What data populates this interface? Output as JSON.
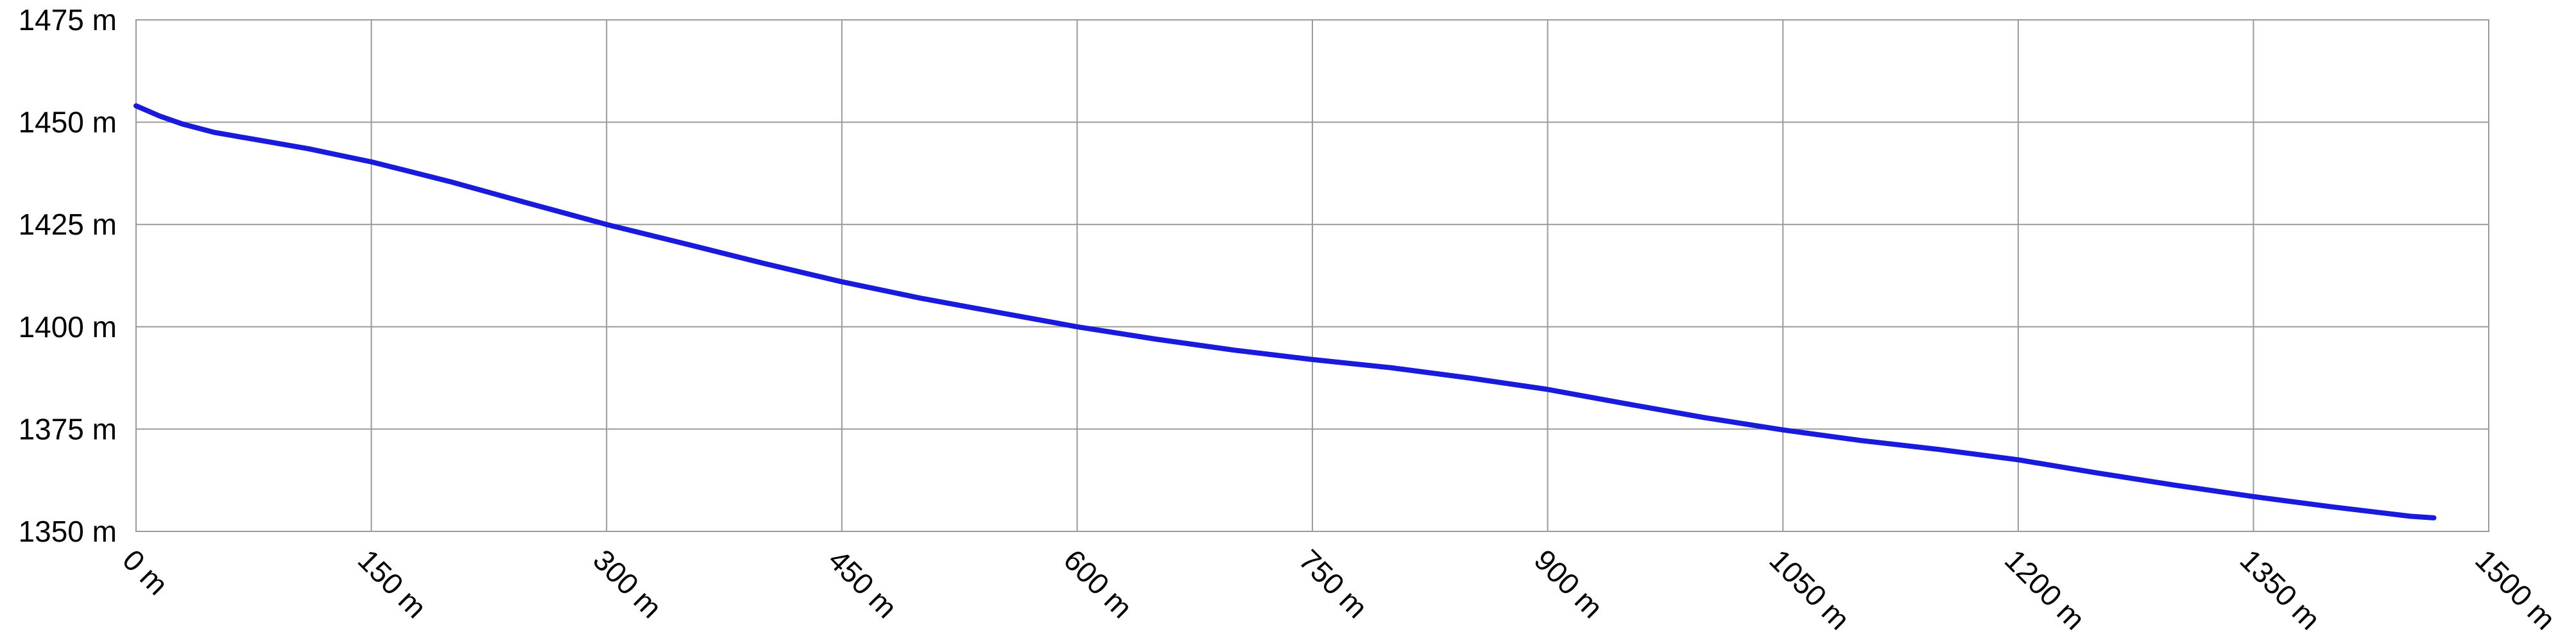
{
  "chart_data": {
    "type": "line",
    "title": "",
    "xlabel": "",
    "ylabel": "",
    "xlim": [
      0,
      1500
    ],
    "ylim": [
      1350,
      1475
    ],
    "x_ticks": [
      0,
      150,
      300,
      450,
      600,
      750,
      900,
      1050,
      1200,
      1350,
      1500
    ],
    "y_ticks": [
      1350,
      1375,
      1400,
      1425,
      1450,
      1475
    ],
    "x_tick_labels": [
      "0 m",
      "150 m",
      "300 m",
      "450 m",
      "600 m",
      "750 m",
      "900 m",
      "1050 m",
      "1200 m",
      "1350 m",
      "1500 m"
    ],
    "y_tick_labels": [
      "1350 m",
      "1375 m",
      "1400 m",
      "1425 m",
      "1450 m",
      "1475 m"
    ],
    "grid": true,
    "series": [
      {
        "color": "#1a1adc",
        "x": [
          0,
          15,
          30,
          50,
          80,
          110,
          150,
          200,
          250,
          300,
          350,
          400,
          450,
          500,
          550,
          600,
          650,
          700,
          750,
          800,
          850,
          900,
          950,
          1000,
          1050,
          1100,
          1150,
          1200,
          1250,
          1300,
          1350,
          1400,
          1450,
          1465
        ],
        "y": [
          1454,
          1451.5,
          1449.5,
          1447.5,
          1445.5,
          1443.5,
          1440.3,
          1435.5,
          1430.2,
          1425,
          1420.3,
          1415.5,
          1411,
          1407,
          1403.5,
          1400,
          1397,
          1394.3,
          1392,
          1390,
          1387.5,
          1384.7,
          1381.2,
          1377.8,
          1374.8,
          1372.2,
          1370,
          1367.5,
          1364.3,
          1361.3,
          1358.5,
          1356,
          1353.7,
          1353.3
        ]
      }
    ]
  }
}
